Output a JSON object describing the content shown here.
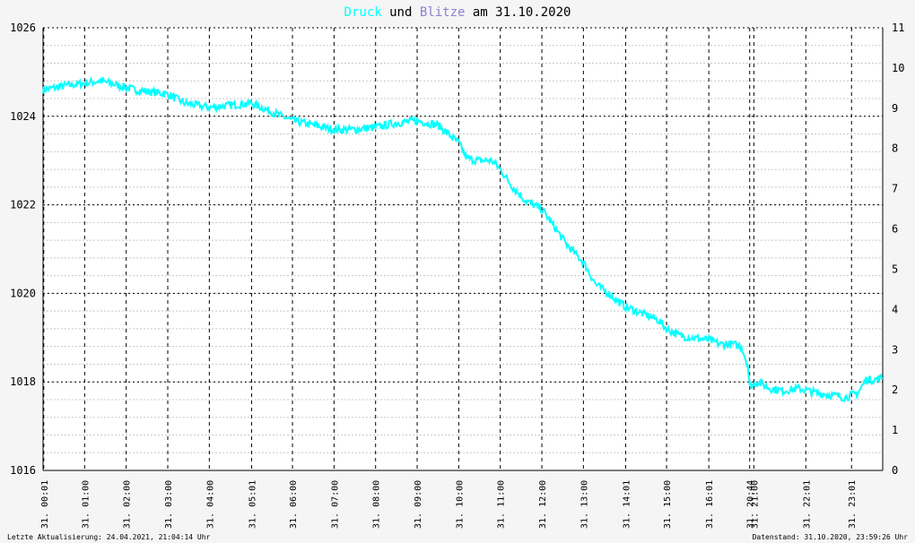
{
  "chart_data": {
    "type": "line",
    "title_parts": [
      {
        "text": "Druck",
        "color": "#00ffff"
      },
      {
        "text": " und ",
        "color": "#000000"
      },
      {
        "text": "Blitze",
        "color": "#8a7fd8"
      },
      {
        "text": " am 31.10.2020",
        "color": "#000000"
      }
    ],
    "y_left": {
      "min": 1016,
      "max": 1026,
      "ticks": [
        1016,
        1018,
        1020,
        1022,
        1024,
        1026
      ]
    },
    "y_right": {
      "min": 0,
      "max": 11,
      "ticks": [
        0,
        1,
        2,
        3,
        4,
        5,
        6,
        7,
        8,
        9,
        10,
        11
      ]
    },
    "x_ticks": [
      {
        "hour": 0.0167,
        "label": "31. 00:01"
      },
      {
        "hour": 1.0,
        "label": "31. 01:00"
      },
      {
        "hour": 2.0,
        "label": "31. 02:00"
      },
      {
        "hour": 3.0,
        "label": "31. 03:00"
      },
      {
        "hour": 4.0,
        "label": "31. 04:00"
      },
      {
        "hour": 5.0167,
        "label": "31. 05:01"
      },
      {
        "hour": 6.0,
        "label": "31. 06:00"
      },
      {
        "hour": 7.0,
        "label": "31. 07:00"
      },
      {
        "hour": 8.0,
        "label": "31. 08:00"
      },
      {
        "hour": 9.0,
        "label": "31. 09:00"
      },
      {
        "hour": 10.0,
        "label": "31. 10:00"
      },
      {
        "hour": 11.0,
        "label": "31. 11:00"
      },
      {
        "hour": 12.0,
        "label": "31. 12:00"
      },
      {
        "hour": 13.0,
        "label": "31. 13:00"
      },
      {
        "hour": 14.0167,
        "label": "31. 14:01"
      },
      {
        "hour": 15.0,
        "label": "31. 15:00"
      },
      {
        "hour": 16.0167,
        "label": "31. 16:01"
      },
      {
        "hour": 17.0,
        "label": "31. 20:44"
      },
      {
        "hour": 17.1,
        "label": "31. 21:00"
      },
      {
        "hour": 18.35,
        "label": "31. 22:01"
      },
      {
        "hour": 19.45,
        "label": "31. 23:01"
      }
    ],
    "x_range": [
      0,
      20.2
    ],
    "series": [
      {
        "color": "#00ffff",
        "x": [
          0.0,
          0.3,
          0.6,
          1.0,
          1.4,
          1.8,
          2.2,
          2.6,
          3.0,
          3.4,
          4.0,
          4.5,
          5.0,
          5.5,
          6.0,
          6.5,
          7.0,
          7.5,
          8.0,
          8.5,
          9.0,
          9.5,
          10.0,
          10.2,
          10.5,
          10.8,
          11.0,
          11.3,
          11.6,
          12.0,
          12.3,
          12.6,
          13.0,
          13.3,
          13.6,
          14.0,
          14.4,
          14.8,
          15.0,
          15.3,
          15.6,
          16.0,
          16.3,
          16.6,
          16.8,
          16.95,
          17.0,
          17.2,
          17.5,
          17.8,
          18.2,
          18.6,
          19.0,
          19.3,
          19.6,
          19.8,
          20.0,
          20.2
        ],
        "values": [
          1024.6,
          1024.65,
          1024.7,
          1024.75,
          1024.8,
          1024.7,
          1024.6,
          1024.55,
          1024.5,
          1024.3,
          1024.2,
          1024.25,
          1024.3,
          1024.1,
          1023.9,
          1023.8,
          1023.7,
          1023.7,
          1023.75,
          1023.85,
          1023.9,
          1023.8,
          1023.4,
          1023.05,
          1023.0,
          1023.0,
          1022.8,
          1022.4,
          1022.1,
          1021.9,
          1021.5,
          1021.1,
          1020.7,
          1020.2,
          1020.0,
          1019.7,
          1019.55,
          1019.4,
          1019.2,
          1019.05,
          1019.0,
          1018.95,
          1018.85,
          1018.85,
          1018.8,
          1018.4,
          1017.9,
          1018.0,
          1017.85,
          1017.8,
          1017.85,
          1017.75,
          1017.7,
          1017.65,
          1017.75,
          1018.05,
          1018.05,
          1018.1
        ]
      }
    ],
    "grid": true
  },
  "footer": {
    "left": "Letzte Aktualisierung: 24.04.2021, 21:04:14 Uhr",
    "right": "Datenstand: 31.10.2020, 23:59:26 Uhr"
  }
}
